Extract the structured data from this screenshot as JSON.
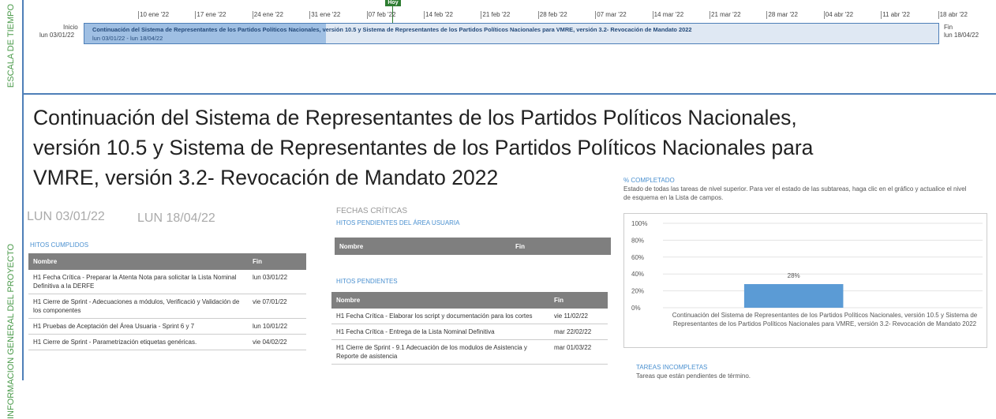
{
  "timeline": {
    "side_label": "ESCALA DE TIEMPO",
    "today": "Hoy",
    "start_label": "Inicio",
    "start_date": "lun 03/01/22",
    "end_label": "Fin",
    "end_date": "lun 18/04/22",
    "dates": [
      "10 ene '22",
      "17 ene '22",
      "24 ene '22",
      "31 ene '22",
      "07 feb '22",
      "14 feb '22",
      "21 feb '22",
      "28 feb '22",
      "07 mar '22",
      "14 mar '22",
      "21 mar '22",
      "28 mar '22",
      "04 abr '22",
      "11 abr '22",
      "18 abr '22"
    ],
    "bar_title": "Continuación del Sistema de Representantes de los Partidos Políticos Nacionales, versión 10.5 y  Sistema de Representantes de los Partidos Políticos Nacionales para VMRE, versión 3.2- Revocación de Mandato 2022",
    "bar_dates": "lun 03/01/22 - lun 18/04/22"
  },
  "overview": {
    "side_label": "INFORMACION GENERAL DEL PROYECTO",
    "title_lines": [
      "Continuación del Sistema de Representantes de los Partidos Políticos Nacionales,",
      "versión 10.5 y  Sistema de Representantes de los Partidos Políticos Nacionales para",
      "VMRE, versión 3.2- Revocación de Mandato 2022"
    ],
    "start": "LUN 03/01/22",
    "finish": "LUN 18/04/22",
    "hitos_cumplidos": {
      "title": "HITOS CUMPLIDOS",
      "headers": [
        "Nombre",
        "Fin"
      ],
      "rows": [
        [
          "H1 Fecha Crítica - Preparar la Atenta Nota para solicitar la Lista Nominal Definitiva a la DERFE",
          "lun 03/01/22"
        ],
        [
          "H1 Cierre de Sprint - Adecuaciones a módulos, Verificació y Validación de los componentes",
          "vie 07/01/22"
        ],
        [
          "H1 Pruebas de Aceptación del Área Usuaria - Sprint 6 y 7",
          "lun 10/01/22"
        ],
        [
          "H1 Cierre de Sprint - Parametrización etiquetas genéricas.",
          "vie 04/02/22"
        ]
      ]
    },
    "fechas_criticas": "FECHAS CRÍTICAS",
    "hitos_usuaria": {
      "title": "HITOS PENDIENTES DEL ÁREA USUARIA",
      "headers": [
        "Nombre",
        "Fin"
      ]
    },
    "hitos_pendientes": {
      "title": "HITOS PENDIENTES",
      "headers": [
        "Nombre",
        "Fin"
      ],
      "rows": [
        [
          "H1 Fecha Crítica - Elaborar los script y documentación para los cortes",
          "vie 11/02/22"
        ],
        [
          "H1 Fecha Crítica - Entrega de la Lista Nominal Definitiva",
          "mar 22/02/22"
        ],
        [
          "H1 Cierre de Sprint - 9.1 Adecuación de los modulos de Asistencia y Reporte de asistencia",
          "mar 01/03/22"
        ]
      ]
    },
    "percent": {
      "title": "% COMPLETADO",
      "description": "Estado de todas las tareas de nivel superior. Para ver el estado de las subtareas, haga clic en el gráfico y actualice el nivel de esquema en la Lista de campos.",
      "chart": {
        "type": "bar",
        "categories": [
          "Continuación del Sistema de Representantes de los Partidos Políticos Nacionales, versión 10.5 y  Sistema de Representantes de los Partidos Políticos Nacionales para VMRE, versión 3.2- Revocación de Mandato 2022"
        ],
        "values": [
          28
        ],
        "value_labels": [
          "28%"
        ],
        "color": "#5b9bd5",
        "ylim": [
          0,
          100
        ],
        "yticks": [
          {
            "value": 0,
            "label": "0%"
          },
          {
            "value": 20,
            "label": "20%"
          },
          {
            "value": 40,
            "label": "40%"
          },
          {
            "value": 60,
            "label": "60%"
          },
          {
            "value": 80,
            "label": "80%"
          },
          {
            "value": 100,
            "label": "100%"
          }
        ],
        "grid": true
      }
    },
    "tareas": {
      "title": "TAREAS INCOMPLETAS",
      "description": "Tareas que están pendientes de término."
    }
  }
}
